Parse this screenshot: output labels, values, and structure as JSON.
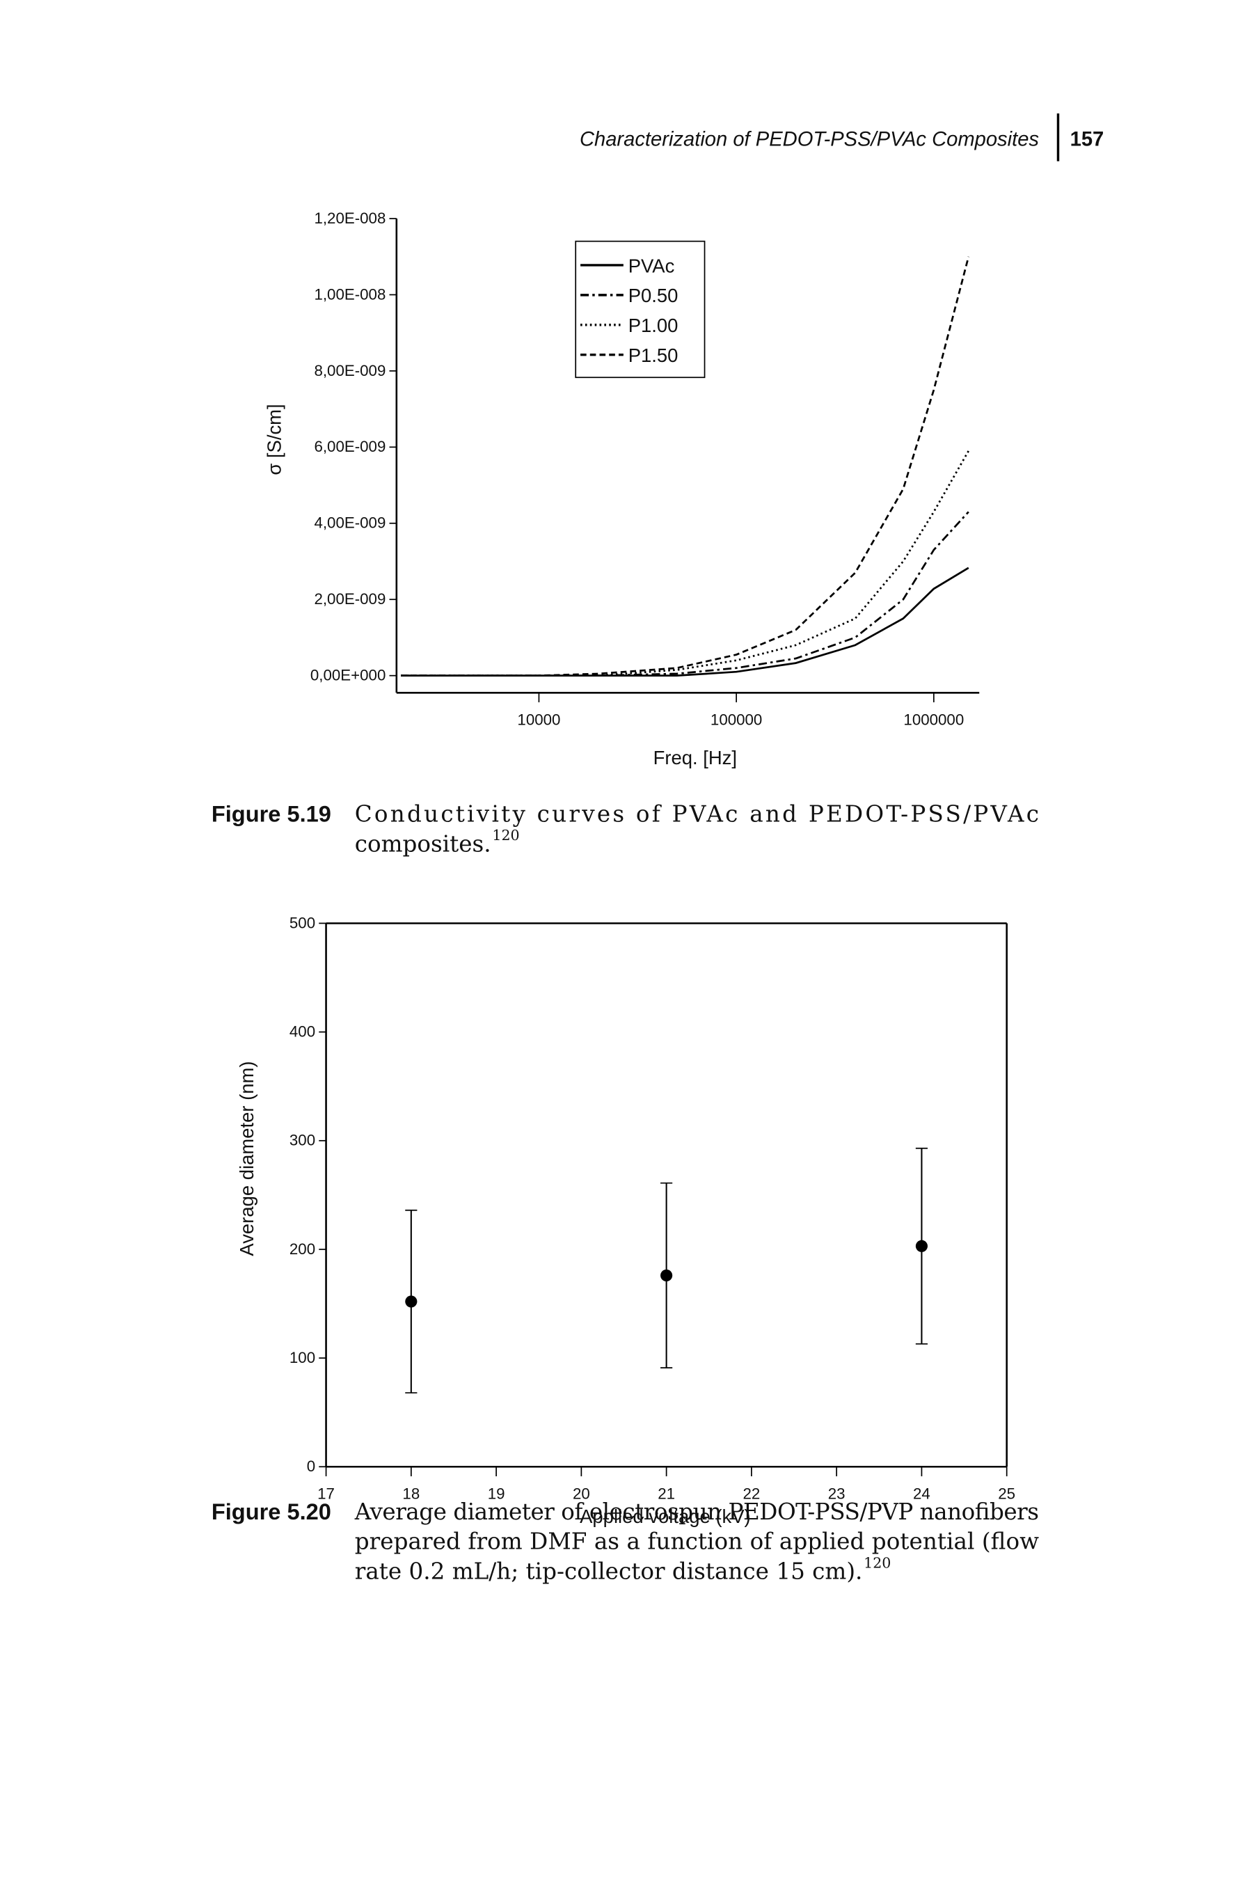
{
  "header": {
    "title": "Characterization of PEDOT-PSS/PVAc Composites",
    "page": "157"
  },
  "chart_data": [
    {
      "type": "line",
      "x_label": "Freq. [Hz]",
      "y_label": "σ [S/cm]",
      "x": [
        2000,
        5000,
        10000,
        20000,
        50000,
        100000,
        200000,
        400000,
        700000,
        1000000,
        1500000
      ],
      "series": [
        {
          "name": "PVAc",
          "color": "#000000",
          "dash": "solid",
          "values": [
            0,
            0,
            0,
            0,
            0,
            1e-10,
            3.3e-10,
            8e-10,
            1.5e-09,
            2.28e-09,
            2.83e-09
          ]
        },
        {
          "name": "P0.50",
          "color": "#000000",
          "dash": "dashdot",
          "values": [
            0,
            0,
            0,
            0,
            5e-11,
            2e-10,
            4.5e-10,
            1e-09,
            2e-09,
            3.3e-09,
            4.3e-09
          ]
        },
        {
          "name": "P1.00",
          "color": "#000000",
          "dash": "dotted",
          "values": [
            0,
            0,
            0,
            0,
            1.5e-10,
            4e-10,
            8e-10,
            1.5e-09,
            3e-09,
            4.3e-09,
            5.9e-09
          ]
        },
        {
          "name": "P1.50",
          "color": "#000000",
          "dash": "dashed",
          "values": [
            0,
            0,
            0,
            5e-11,
            2e-10,
            5.5e-10,
            1.2e-09,
            2.7e-09,
            4.9e-09,
            7.5e-09,
            1.1e-08
          ]
        }
      ],
      "log_x": true,
      "xlim": [
        1900,
        1700000
      ],
      "xticks": [
        10000,
        100000,
        1000000
      ],
      "ylim": [
        -4.5e-10,
        1.2e-08
      ],
      "yticks": [
        {
          "value": 0,
          "label": "0,00E+000"
        },
        {
          "value": 2e-09,
          "label": "2,00E-009"
        },
        {
          "value": 4e-09,
          "label": "4,00E-009"
        },
        {
          "value": 6e-09,
          "label": "6,00E-009"
        },
        {
          "value": 8e-09,
          "label": "8,00E-009"
        },
        {
          "value": 1e-08,
          "label": "1,00E-008"
        },
        {
          "value": 1.2e-08,
          "label": "1,20E-008"
        }
      ],
      "legend": "upper center",
      "caption_label": "Figure 5.19",
      "caption": [
        "Conductivity curves of PVAc and PEDOT-PSS/PVAc",
        "composites."
      ],
      "caption_ref": "120"
    },
    {
      "type": "scatter",
      "x_label": "Applied voltage (kV)",
      "y_label": "Average diameter (nm)",
      "x": [
        18,
        21,
        24
      ],
      "values": [
        152,
        176,
        203
      ],
      "errors": [
        84,
        85,
        90
      ],
      "color": "#000000",
      "xlim": [
        17,
        25
      ],
      "xticks": [
        17,
        18,
        19,
        20,
        21,
        22,
        23,
        24,
        25
      ],
      "ylim": [
        0,
        500
      ],
      "yticks": [
        0,
        100,
        200,
        300,
        400,
        500
      ],
      "caption_label": "Figure 5.20",
      "caption": [
        "Average diameter of electrospun PEDOT-PSS/PVP nanofibers",
        "prepared from DMF as a function of applied potential (flow",
        "rate 0.2 mL/h; tip-collector distance 15 cm)."
      ],
      "caption_ref": "120"
    }
  ]
}
